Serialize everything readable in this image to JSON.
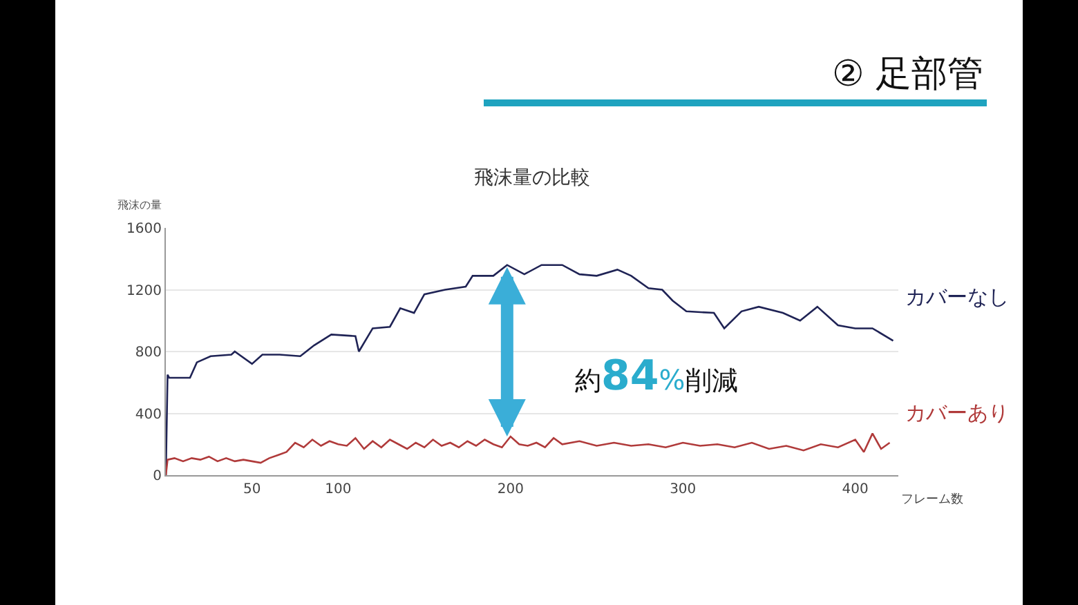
{
  "chart_data": {
    "type": "line",
    "title": "② 足部管",
    "subtitle": "飛沫量の比較",
    "xlabel": "フレーム数",
    "ylabel": "飛沫の量",
    "annotations": [
      "約84%削減"
    ],
    "series": [
      {
        "name": "カバーなし",
        "color": "#1f2355",
        "x": [
          0,
          1,
          2,
          14,
          18,
          26,
          38,
          40,
          50,
          56,
          66,
          78,
          86,
          96,
          110,
          112,
          120,
          130,
          136,
          144,
          150,
          162,
          174,
          178,
          190,
          198,
          208,
          218,
          230,
          240,
          250,
          262,
          270,
          280,
          288,
          294,
          302,
          318,
          324,
          334,
          344,
          358,
          368,
          378,
          390,
          400,
          410,
          422
        ],
        "values": [
          0,
          650,
          630,
          630,
          730,
          770,
          780,
          800,
          720,
          780,
          780,
          770,
          840,
          910,
          900,
          800,
          950,
          960,
          1080,
          1050,
          1170,
          1200,
          1220,
          1290,
          1290,
          1360,
          1300,
          1360,
          1360,
          1300,
          1290,
          1330,
          1290,
          1210,
          1200,
          1130,
          1060,
          1050,
          950,
          1060,
          1090,
          1050,
          1000,
          1090,
          970,
          950,
          950,
          870
        ]
      },
      {
        "name": "カバーあり",
        "color": "#b03a3a",
        "x": [
          0,
          1,
          5,
          10,
          15,
          20,
          25,
          30,
          35,
          40,
          45,
          50,
          55,
          60,
          65,
          70,
          75,
          80,
          85,
          90,
          95,
          100,
          105,
          110,
          115,
          120,
          125,
          130,
          135,
          140,
          145,
          150,
          155,
          160,
          165,
          170,
          175,
          180,
          185,
          190,
          195,
          200,
          205,
          210,
          215,
          220,
          225,
          230,
          240,
          250,
          260,
          270,
          280,
          290,
          300,
          310,
          320,
          330,
          340,
          350,
          360,
          370,
          380,
          390,
          400,
          405,
          410,
          415,
          420
        ],
        "values": [
          0,
          100,
          110,
          90,
          110,
          100,
          120,
          90,
          110,
          90,
          100,
          90,
          80,
          110,
          130,
          150,
          210,
          180,
          230,
          190,
          220,
          200,
          190,
          240,
          170,
          220,
          180,
          230,
          200,
          170,
          210,
          180,
          230,
          190,
          210,
          180,
          220,
          190,
          230,
          200,
          180,
          250,
          200,
          190,
          210,
          180,
          240,
          200,
          220,
          190,
          210,
          190,
          200,
          180,
          210,
          190,
          200,
          180,
          210,
          170,
          190,
          160,
          200,
          180,
          230,
          150,
          270,
          170,
          210
        ]
      }
    ],
    "xlim": [
      0,
      425
    ],
    "xticks": [
      50,
      100,
      200,
      300,
      400
    ],
    "ylim": [
      0,
      1600
    ],
    "yticks": [
      0,
      400,
      800,
      1200,
      1600
    ],
    "grid": "y",
    "legend": false,
    "marker": "none",
    "line_style": "solid"
  }
}
